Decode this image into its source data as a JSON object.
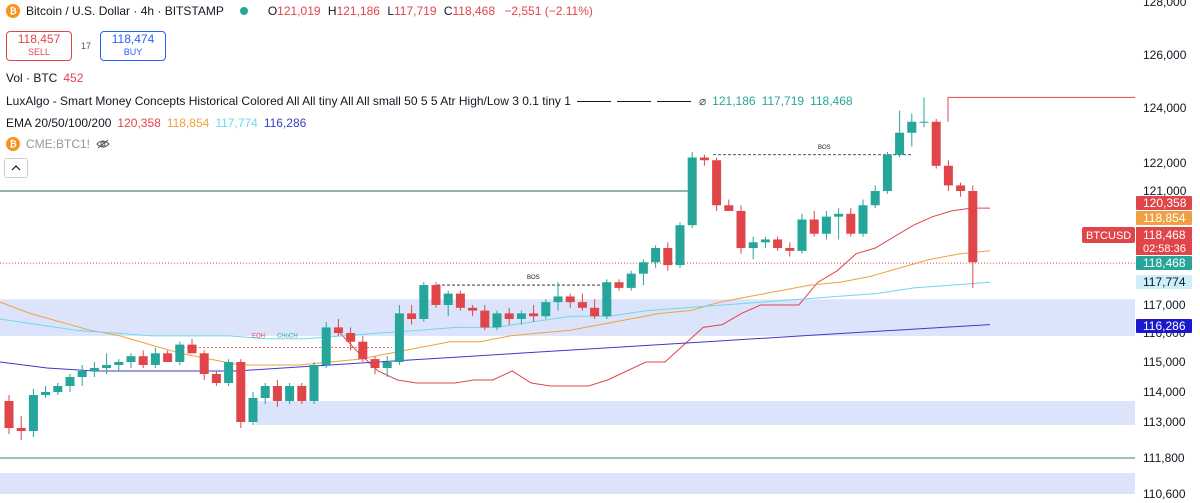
{
  "header": {
    "symbol_title": "Bitcoin / U.S. Dollar · 4h · BITSTAMP",
    "ohlc": [
      {
        "k": "O",
        "v": "121,019"
      },
      {
        "k": "H",
        "v": "121,186"
      },
      {
        "k": "L",
        "v": "117,719"
      },
      {
        "k": "C",
        "v": "118,468"
      }
    ],
    "change": "−2,551 (−2.11%)"
  },
  "trade": {
    "sell_price": "118,457",
    "sell_label": "SELL",
    "spread": "17",
    "buy_price": "118,474",
    "buy_label": "BUY"
  },
  "indicators": {
    "vol_label": "Vol · BTC",
    "vol_value": "452",
    "luxalgo_label": "LuxAlgo - Smart Money Concepts Historical Colored All All tiny All All small 50 5 5 Atr High/Low 3 0.1 tiny 1",
    "luxalgo_values": [
      "121,186",
      "117,719",
      "118,468"
    ],
    "ema_label": "EMA 20/50/100/200",
    "ema_values": [
      "120,358",
      "118,854",
      "117,774",
      "116,286"
    ],
    "cme_label": "CME:BTC1!"
  },
  "colors": {
    "up": "#26a69a",
    "down": "#e0454a",
    "ema20": "#e0454a",
    "ema50": "#f0a040",
    "ema100": "#70d8ee",
    "ema200": "#3c3cc8",
    "zone": "#dbe4fb",
    "support_line": "#2e8b57"
  },
  "chart_data": {
    "type": "candlestick",
    "interval": "4h",
    "ylim": [
      110600,
      128000
    ],
    "y_ticks": [
      "128,000",
      "126,000",
      "124,000",
      "122,000",
      "121,000",
      "117,000",
      "116,000",
      "115,000",
      "114,000",
      "113,000",
      "111,800",
      "110,600"
    ],
    "candles": [
      [
        113700,
        113900,
        112600,
        112800
      ],
      [
        112800,
        113200,
        112400,
        112700
      ],
      [
        112700,
        114100,
        112500,
        113900
      ],
      [
        113900,
        114200,
        113800,
        114000
      ],
      [
        114000,
        114300,
        113900,
        114200
      ],
      [
        114200,
        114600,
        114000,
        114500
      ],
      [
        114500,
        114900,
        114200,
        114700
      ],
      [
        114700,
        115000,
        114500,
        114800
      ],
      [
        114800,
        115300,
        114600,
        114900
      ],
      [
        114900,
        115100,
        114700,
        115000
      ],
      [
        115000,
        115300,
        114800,
        115200
      ],
      [
        115200,
        115400,
        114800,
        114900
      ],
      [
        114900,
        115500,
        114800,
        115300
      ],
      [
        115300,
        115400,
        115000,
        115000
      ],
      [
        115000,
        115700,
        114900,
        115600
      ],
      [
        115600,
        115800,
        115300,
        115300
      ],
      [
        115300,
        115400,
        114400,
        114600
      ],
      [
        114600,
        114700,
        114200,
        114300
      ],
      [
        114300,
        115100,
        114200,
        115000
      ],
      [
        115000,
        115100,
        112800,
        113000
      ],
      [
        113000,
        114000,
        112900,
        113800
      ],
      [
        113800,
        114300,
        113600,
        114200
      ],
      [
        114200,
        114400,
        113500,
        113700
      ],
      [
        113700,
        114300,
        113600,
        114200
      ],
      [
        114200,
        114300,
        113600,
        113700
      ],
      [
        113700,
        115000,
        113600,
        114900
      ],
      [
        114900,
        116400,
        114800,
        116200
      ],
      [
        116200,
        116500,
        115900,
        116000
      ],
      [
        116000,
        116200,
        115400,
        115700
      ],
      [
        115700,
        115900,
        115000,
        115100
      ],
      [
        115100,
        115200,
        114600,
        114800
      ],
      [
        114800,
        115200,
        114500,
        115000
      ],
      [
        115000,
        117000,
        114900,
        116700
      ],
      [
        116700,
        117000,
        116300,
        116500
      ],
      [
        116500,
        117800,
        116400,
        117700
      ],
      [
        117700,
        117800,
        116900,
        117000
      ],
      [
        117000,
        117500,
        116600,
        117400
      ],
      [
        117400,
        117500,
        116800,
        116900
      ],
      [
        116900,
        117000,
        116600,
        116800
      ],
      [
        116800,
        117000,
        116100,
        116200
      ],
      [
        116200,
        116800,
        116100,
        116700
      ],
      [
        116700,
        116900,
        116300,
        116500
      ],
      [
        116500,
        116800,
        116300,
        116700
      ],
      [
        116700,
        117000,
        116400,
        116600
      ],
      [
        116600,
        117200,
        116500,
        117100
      ],
      [
        117100,
        117800,
        116800,
        117300
      ],
      [
        117300,
        117400,
        116900,
        117100
      ],
      [
        117100,
        117400,
        116800,
        116900
      ],
      [
        116900,
        117200,
        116500,
        116600
      ],
      [
        116600,
        117900,
        116500,
        117800
      ],
      [
        117800,
        117900,
        117500,
        117600
      ],
      [
        117600,
        118200,
        117500,
        118100
      ],
      [
        118100,
        118600,
        117700,
        118500
      ],
      [
        118500,
        119100,
        118300,
        119000
      ],
      [
        119000,
        119200,
        118200,
        118400
      ],
      [
        118400,
        119900,
        118300,
        119800
      ],
      [
        119800,
        122400,
        119700,
        122200
      ],
      [
        122200,
        122300,
        121900,
        122100
      ],
      [
        122100,
        122200,
        120300,
        120500
      ],
      [
        120500,
        120700,
        120300,
        120300
      ],
      [
        120300,
        120500,
        118800,
        119000
      ],
      [
        119000,
        119400,
        118600,
        119200
      ],
      [
        119200,
        119400,
        119000,
        119300
      ],
      [
        119300,
        119400,
        118900,
        119000
      ],
      [
        119000,
        119200,
        118700,
        118900
      ],
      [
        118900,
        120200,
        118800,
        120000
      ],
      [
        120000,
        120300,
        119400,
        119500
      ],
      [
        119500,
        120300,
        119300,
        120100
      ],
      [
        120100,
        120400,
        119300,
        120200
      ],
      [
        120200,
        120400,
        119400,
        119500
      ],
      [
        119500,
        120700,
        119400,
        120500
      ],
      [
        120500,
        121200,
        120400,
        121000
      ],
      [
        121000,
        122400,
        120900,
        122300
      ],
      [
        122300,
        123900,
        122200,
        123100
      ],
      [
        123100,
        123800,
        122600,
        123500
      ],
      [
        123500,
        124400,
        123300,
        123500
      ],
      [
        123500,
        123600,
        121800,
        121900
      ],
      [
        121900,
        122100,
        121000,
        121200
      ],
      [
        121200,
        121300,
        120800,
        121000
      ],
      [
        121000,
        121200,
        117600,
        118500
      ]
    ],
    "ema_series": [
      {
        "name": "EMA 20",
        "values": [
          116000,
          115300,
          114700,
          114400,
          114300,
          114300,
          114300,
          114400,
          114400,
          114700,
          114300,
          114200,
          114200,
          114200,
          114400,
          114700,
          115000,
          115000,
          115600,
          116200,
          116300,
          116700,
          117000,
          117000,
          117000,
          117800,
          118200,
          118800,
          119000,
          119400,
          119800,
          120100,
          120300,
          120400,
          120400
        ]
      },
      {
        "name": "EMA 50",
        "values": [
          117100,
          116700,
          116400,
          116100,
          115900,
          115600,
          115300,
          115100,
          114900,
          114900,
          114900,
          115000,
          115100,
          115300,
          115500,
          115700,
          115700,
          115900,
          116000,
          116100,
          116300,
          116500,
          116700,
          116800,
          117100,
          117300,
          117500,
          117700,
          117800,
          118000,
          118300,
          118600,
          118800,
          118900
        ]
      },
      {
        "name": "EMA 100",
        "values": [
          116500,
          116300,
          116100,
          116000,
          115900,
          115900,
          115900,
          115800,
          115800,
          115900,
          116000,
          116100,
          116200,
          116200,
          116400,
          116600,
          116600,
          116800,
          116900,
          117000,
          117100,
          117200,
          117300,
          117400,
          117600,
          117700,
          117800
        ]
      },
      {
        "name": "EMA 200",
        "values": [
          115000,
          114800,
          114700,
          114700,
          114700,
          114700,
          114800,
          114900,
          115000,
          115100,
          115200,
          115300,
          115400,
          115500,
          115600,
          115700,
          115800,
          115900,
          116000,
          116100,
          116200,
          116300
        ]
      }
    ],
    "ema_last": [
      "120,358",
      "118,854",
      "117,774",
      "116,286"
    ],
    "last_price": "118,468",
    "countdown": "02:58:36",
    "symbol_tag": "BTCUSD",
    "annotations": [
      "BOS",
      "BOS",
      "EQH",
      "CHoCH"
    ]
  }
}
